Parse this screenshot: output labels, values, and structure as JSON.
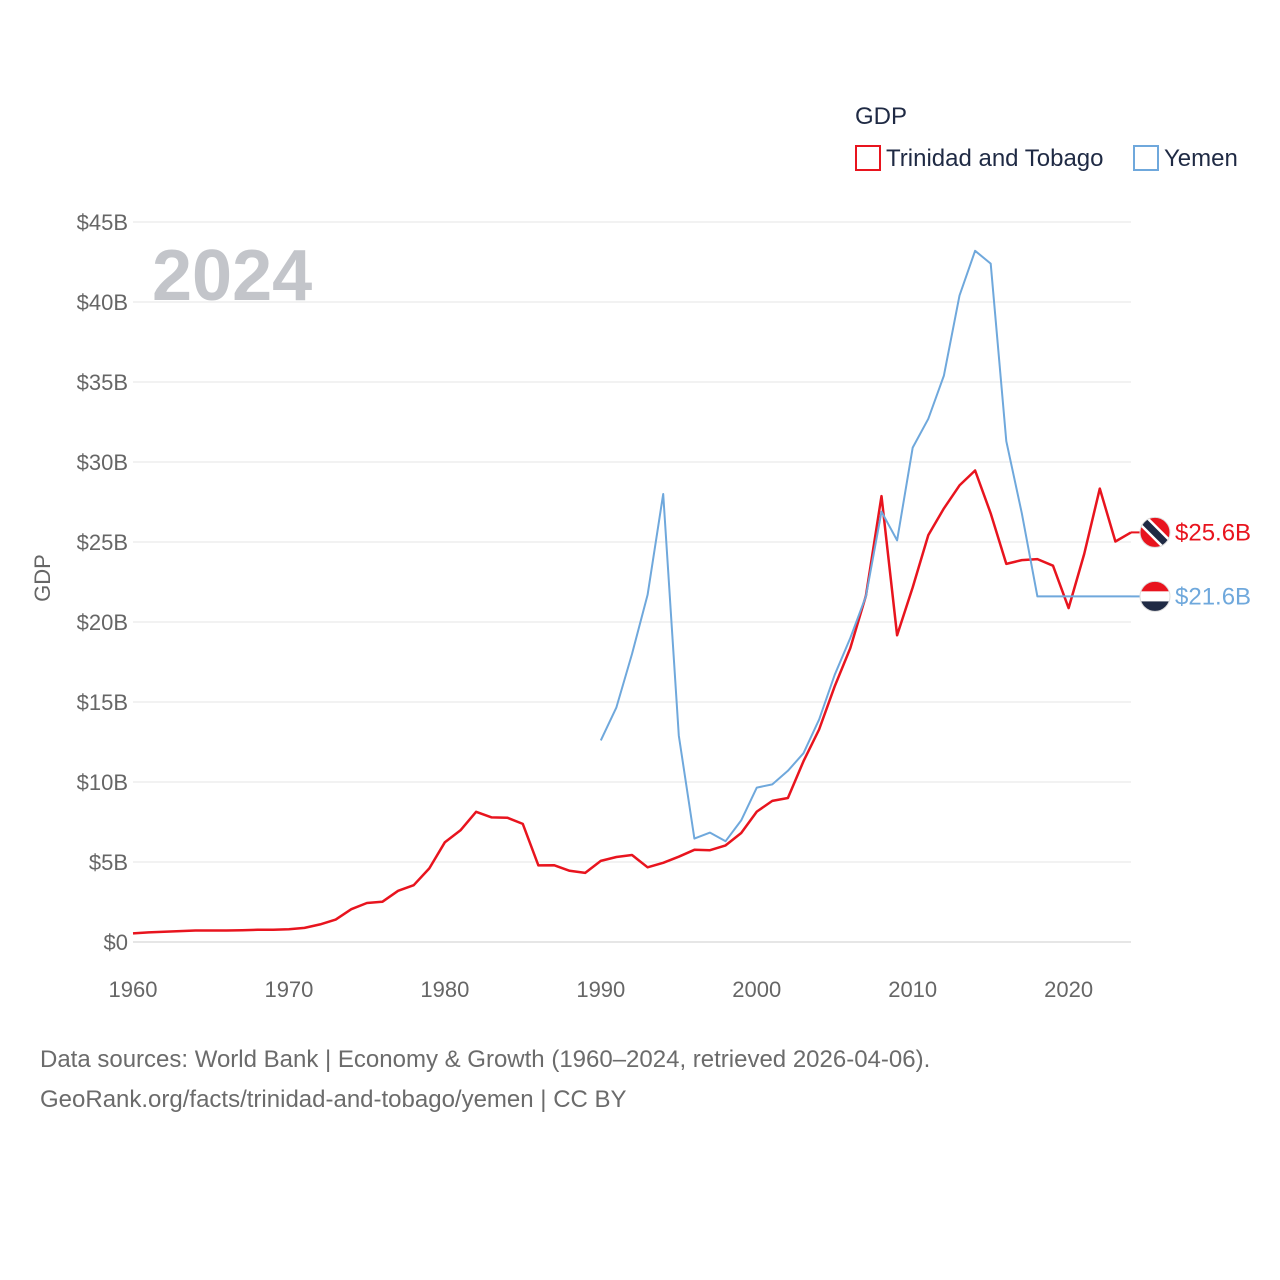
{
  "chart_data": {
    "type": "line",
    "title": "",
    "legend_title": "GDP",
    "highlight_year": "2024",
    "ylabel": "GDP",
    "xlabel": "",
    "xlim": [
      1960,
      2024
    ],
    "ylim": [
      0,
      45
    ],
    "y_unit": "billion USD",
    "x_ticks": [
      1960,
      1970,
      1980,
      1990,
      2000,
      2010,
      2020
    ],
    "y_ticks": [
      0,
      5,
      10,
      15,
      20,
      25,
      30,
      35,
      40,
      45
    ],
    "y_tick_labels": [
      "$0",
      "$5B",
      "$10B",
      "$15B",
      "$20B",
      "$25B",
      "$30B",
      "$35B",
      "$40B",
      "$45B"
    ],
    "series": [
      {
        "name": "Trinidad and Tobago",
        "color": "#e8141e",
        "end_label": "$25.6B",
        "x": [
          1960,
          1961,
          1962,
          1963,
          1964,
          1965,
          1966,
          1967,
          1968,
          1969,
          1970,
          1971,
          1972,
          1973,
          1974,
          1975,
          1976,
          1977,
          1978,
          1979,
          1980,
          1981,
          1982,
          1983,
          1984,
          1985,
          1986,
          1987,
          1988,
          1989,
          1990,
          1991,
          1992,
          1993,
          1994,
          1995,
          1996,
          1997,
          1998,
          1999,
          2000,
          2001,
          2002,
          2003,
          2004,
          2005,
          2006,
          2007,
          2008,
          2009,
          2010,
          2011,
          2012,
          2013,
          2014,
          2015,
          2016,
          2017,
          2018,
          2019,
          2020,
          2021,
          2022,
          2023,
          2024
        ],
        "values": [
          0.54,
          0.6,
          0.64,
          0.68,
          0.72,
          0.72,
          0.72,
          0.74,
          0.76,
          0.77,
          0.8,
          0.88,
          1.1,
          1.4,
          2.05,
          2.44,
          2.52,
          3.2,
          3.55,
          4.6,
          6.24,
          6.98,
          8.14,
          7.79,
          7.77,
          7.38,
          4.79,
          4.8,
          4.45,
          4.32,
          5.07,
          5.31,
          5.44,
          4.67,
          4.95,
          5.33,
          5.76,
          5.74,
          6.04,
          6.81,
          8.15,
          8.82,
          9.0,
          11.3,
          13.28,
          15.98,
          18.37,
          21.64,
          27.87,
          19.17,
          22.16,
          25.43,
          27.1,
          28.54,
          29.47,
          26.79,
          23.63,
          23.87,
          23.93,
          23.52,
          20.87,
          24.25,
          28.34,
          25.03,
          25.6
        ]
      },
      {
        "name": "Yemen",
        "color": "#6fa8dc",
        "end_label": "$21.6B",
        "x": [
          1990,
          1991,
          1992,
          1993,
          1994,
          1995,
          1996,
          1997,
          1998,
          1999,
          2000,
          2001,
          2002,
          2003,
          2004,
          2005,
          2006,
          2007,
          2008,
          2009,
          2010,
          2011,
          2012,
          2013,
          2014,
          2015,
          2016,
          2017,
          2018,
          2019,
          2020,
          2021,
          2022,
          2023,
          2024
        ],
        "values": [
          12.6,
          14.66,
          18.0,
          21.7,
          28.0,
          12.9,
          6.46,
          6.84,
          6.3,
          7.6,
          9.65,
          9.85,
          10.7,
          11.8,
          13.9,
          16.7,
          19.0,
          21.6,
          26.9,
          25.1,
          30.9,
          32.7,
          35.4,
          40.4,
          43.2,
          42.4,
          31.3,
          26.8,
          21.6,
          21.6,
          21.6,
          21.6,
          21.6,
          21.6,
          21.6
        ]
      }
    ]
  },
  "source": {
    "line1": "Data sources: World Bank | Economy & Growth (1960–2024, retrieved 2026-04-06).",
    "line2": "GeoRank.org/facts/trinidad-and-tobago/yemen | CC BY"
  }
}
